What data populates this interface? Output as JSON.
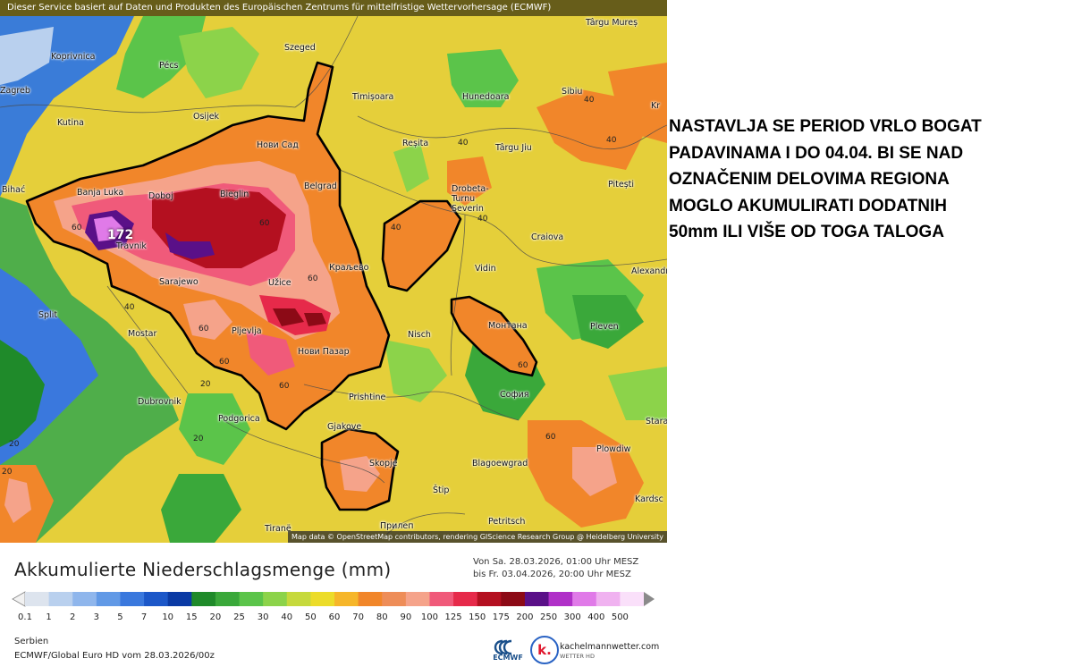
{
  "map": {
    "source_note": "Dieser Service basiert auf Daten und Produkten des Europäischen Zentrums für mittelfristige Wettervorhersage (ECMWF)",
    "attribution": "Map data © OpenStreetMap contributors, rendering GIScience Research Group @ Heidelberg University",
    "max_value_label": "172",
    "cities": {
      "koprivnica": "Koprivnica",
      "pecs": "Pécs",
      "szeged": "Szeged",
      "zagreb": "Zagreb",
      "osijek": "Osijek",
      "kutina": "Kutina",
      "novi_sad": "Нови Сад",
      "timisoara": "Timișoara",
      "resita": "Reșita",
      "hunedoara": "Hunedoara",
      "sibiu": "Sibiu",
      "targu_mures": "Târgu Mureș",
      "targu_jiu": "Târgu Jiu",
      "pitesti": "Pitești",
      "craiova": "Craiova",
      "drobeta": "Drobeta-Turnu Severin",
      "bihac": "Bihać",
      "banja_luka": "Banja Luka",
      "doboj": "Doboj",
      "bieglin": "Bieglin",
      "belgrad": "Belgrad",
      "travnik": "Travnik",
      "sarajevo": "Sarajewo",
      "uzice": "Užice",
      "kraljevo": "Краљево",
      "vidin": "Vidin",
      "split": "Split",
      "mostar": "Mostar",
      "pljevlja": "Pljevlja",
      "novi_pazar": "Нови Пазар",
      "nis": "Nisch",
      "montana": "Монтана",
      "pleven": "Pleven",
      "alexandria": "Alexandr",
      "dubrovnik": "Dubrovnik",
      "podgorica": "Podgorica",
      "pristina": "Prishtine",
      "sofia": "София",
      "gjakova": "Gjakove",
      "skopje": "Skopje",
      "blagoevgrad": "Blagoewgrad",
      "plovdiv": "Plowdiw",
      "stara": "Stara",
      "stip": "Štip",
      "tirane": "Tiranë",
      "prilep": "Прилеп",
      "petritsch": "Petritsch",
      "kardzhali": "Kardsc",
      "kr": "Kr"
    },
    "contour_labels": [
      "40",
      "40",
      "40",
      "40",
      "40",
      "40",
      "60",
      "60",
      "60",
      "60",
      "60",
      "60",
      "60",
      "60",
      "20",
      "20",
      "20",
      "20"
    ]
  },
  "annotation": {
    "lines": [
      "NASTAVLJA SE PERIOD VRLO BOGAT",
      "PADAVINAMA I DO 04.04. BI SE NAD",
      "OZNAČENIM DELOVIMA REGIONA",
      "MOGLO AKUMULIRATI DODATNIH",
      "50mm ILI VIŠE OD TOGA TALOGA"
    ]
  },
  "footer": {
    "title": "Akkumulierte Niederschlagsmenge (mm)",
    "period_from": "Von Sa. 28.03.2026, 01:00 Uhr MESZ",
    "period_to": "bis Fr. 03.04.2026, 20:00 Uhr MESZ",
    "region": "Serbien",
    "model": "ECMWF/Global Euro HD vom  28.03.2026/00z",
    "ecmwf_logo_text": "ECMWF",
    "brand_name": "kachelmannwetter.com",
    "brand_sub": "WETTER HD",
    "brand_letter": "k."
  },
  "legend": {
    "labels": [
      "0.1",
      "1",
      "2",
      "3",
      "5",
      "7",
      "10",
      "15",
      "20",
      "25",
      "30",
      "40",
      "50",
      "60",
      "70",
      "80",
      "90",
      "100",
      "125",
      "150",
      "175",
      "200",
      "250",
      "300",
      "400",
      "500"
    ],
    "colors": [
      "#dde4ee",
      "#b9d0ee",
      "#8fb6ec",
      "#6199e6",
      "#3a78dd",
      "#1c57c8",
      "#0a3aa4",
      "#1f8a2a",
      "#3aa83a",
      "#5bc44a",
      "#8cd34a",
      "#c6d93c",
      "#ecdc2a",
      "#f6b62a",
      "#f1862a",
      "#ee8d58",
      "#f5a38a",
      "#f05a7a",
      "#e62a4a",
      "#b41020",
      "#8c0a16",
      "#5a1088",
      "#b030c8",
      "#e07ae8",
      "#f0b2f0",
      "#fae0fa"
    ]
  }
}
